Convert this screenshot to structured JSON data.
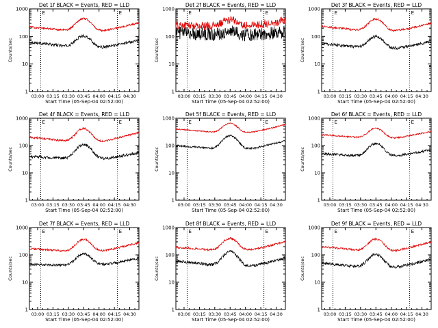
{
  "chart_data": [
    {
      "type": "line",
      "title": "Det 1f BLACK = Events, RED = LLD",
      "xlabel": "Start Time (05-Sep-04 02:52:00)",
      "ylabel": "Counts/sec",
      "yscale": "log",
      "ylim": [
        1,
        1000
      ],
      "x_ticks": [
        "03:00",
        "03:15",
        "03:30",
        "03:45",
        "04:00",
        "04:15",
        "04:30"
      ],
      "y_ticks": [
        "1",
        "10",
        "100",
        "1000"
      ],
      "markers": [
        "E",
        "E"
      ],
      "series": [
        {
          "name": "Events",
          "color": "#000000",
          "base_start": 62,
          "base_min": 35,
          "base_end": 75,
          "peak": 105,
          "noise": 0.12
        },
        {
          "name": "LLD",
          "color": "#e00000",
          "base_start": 220,
          "base_min": 140,
          "base_end": 310,
          "peak": 450,
          "noise": 0.08
        }
      ]
    },
    {
      "type": "line",
      "title": "Det 2f BLACK = Events, RED = LLD",
      "xlabel": "Start Time (05-Sep-04 02:52:00)",
      "ylabel": "Counts/sec",
      "yscale": "log",
      "ylim": [
        1,
        1000
      ],
      "x_ticks": [
        "03:00",
        "03:15",
        "03:30",
        "03:45",
        "04:00",
        "04:15",
        "04:30"
      ],
      "y_ticks": [
        "1",
        "10",
        "100",
        "1000"
      ],
      "markers": [
        "E",
        "E"
      ],
      "series": [
        {
          "name": "Events",
          "color": "#000000",
          "base_start": 140,
          "base_min": 110,
          "base_end": 150,
          "peak": 150,
          "noise": 0.55
        },
        {
          "name": "LLD",
          "color": "#e00000",
          "base_start": 260,
          "base_min": 230,
          "base_end": 380,
          "peak": 400,
          "noise": 0.35
        }
      ]
    },
    {
      "type": "line",
      "title": "Det 3f BLACK = Events, RED = LLD",
      "xlabel": "Start Time (05-Sep-04 02:52:00)",
      "ylabel": "Counts/sec",
      "yscale": "log",
      "ylim": [
        1,
        1000
      ],
      "x_ticks": [
        "03:00",
        "03:15",
        "03:30",
        "03:45",
        "04:00",
        "04:15",
        "04:30"
      ],
      "y_ticks": [
        "1",
        "10",
        "100",
        "1000"
      ],
      "markers": [
        "E",
        "E"
      ],
      "series": [
        {
          "name": "Events",
          "color": "#000000",
          "base_start": 55,
          "base_min": 33,
          "base_end": 65,
          "peak": 100,
          "noise": 0.12
        },
        {
          "name": "LLD",
          "color": "#e00000",
          "base_start": 230,
          "base_min": 140,
          "base_end": 300,
          "peak": 430,
          "noise": 0.08
        }
      ]
    },
    {
      "type": "line",
      "title": "Det 4f BLACK = Events, RED = LLD",
      "xlabel": "Start Time (05-Sep-04 02:52:00)",
      "ylabel": "Counts/sec",
      "yscale": "log",
      "ylim": [
        1,
        1000
      ],
      "x_ticks": [
        "03:00",
        "03:15",
        "03:30",
        "03:45",
        "04:00",
        "04:15",
        "04:30"
      ],
      "y_ticks": [
        "1",
        "10",
        "100",
        "1000"
      ],
      "markers": [
        "E",
        "E"
      ],
      "series": [
        {
          "name": "Events",
          "color": "#000000",
          "base_start": 40,
          "base_min": 30,
          "base_end": 55,
          "peak": 110,
          "noise": 0.12
        },
        {
          "name": "LLD",
          "color": "#e00000",
          "base_start": 200,
          "base_min": 120,
          "base_end": 300,
          "peak": 420,
          "noise": 0.08
        }
      ]
    },
    {
      "type": "line",
      "title": "Det 5f BLACK = Events, RED = LLD",
      "xlabel": "Start Time (05-Sep-04 02:52:00)",
      "ylabel": "Counts/sec",
      "yscale": "log",
      "ylim": [
        1,
        1000
      ],
      "x_ticks": [
        "03:00",
        "03:15",
        "03:30",
        "03:45",
        "04:00",
        "04:15",
        "04:30"
      ],
      "y_ticks": [
        "1",
        "10",
        "100",
        "1000"
      ],
      "markers": [
        "E",
        "E"
      ],
      "series": [
        {
          "name": "Events",
          "color": "#000000",
          "base_start": 100,
          "base_min": 65,
          "base_end": 150,
          "peak": 230,
          "noise": 0.08
        },
        {
          "name": "LLD",
          "color": "#e00000",
          "base_start": 400,
          "base_min": 260,
          "base_end": 580,
          "peak": 650,
          "noise": 0.05
        }
      ]
    },
    {
      "type": "line",
      "title": "Det 6f BLACK = Events, RED = LLD",
      "xlabel": "Start Time (05-Sep-04 02:52:00)",
      "ylabel": "Counts/sec",
      "yscale": "log",
      "ylim": [
        1,
        1000
      ],
      "x_ticks": [
        "03:00",
        "03:15",
        "03:30",
        "03:45",
        "04:00",
        "04:15",
        "04:30"
      ],
      "y_ticks": [
        "1",
        "10",
        "100",
        "1000"
      ],
      "markers": [
        "E",
        "E"
      ],
      "series": [
        {
          "name": "Events",
          "color": "#000000",
          "base_start": 50,
          "base_min": 38,
          "base_end": 70,
          "peak": 120,
          "noise": 0.1
        },
        {
          "name": "LLD",
          "color": "#e00000",
          "base_start": 250,
          "base_min": 170,
          "base_end": 330,
          "peak": 430,
          "noise": 0.06
        }
      ]
    },
    {
      "type": "line",
      "title": "Det 7f BLACK = Events, RED = LLD",
      "xlabel": "Start Time (05-Sep-04 02:52:00)",
      "ylabel": "Counts/sec",
      "yscale": "log",
      "ylim": [
        1,
        1000
      ],
      "x_ticks": [
        "03:00",
        "03:15",
        "03:30",
        "03:45",
        "04:00",
        "04:15",
        "04:30"
      ],
      "y_ticks": [
        "1",
        "10",
        "100",
        "1000"
      ],
      "markers": [
        "E",
        "E"
      ],
      "series": [
        {
          "name": "Events",
          "color": "#000000",
          "base_start": 45,
          "base_min": 40,
          "base_end": 75,
          "peak": 110,
          "noise": 0.1
        },
        {
          "name": "LLD",
          "color": "#e00000",
          "base_start": 170,
          "base_min": 120,
          "base_end": 280,
          "peak": 370,
          "noise": 0.08
        }
      ]
    },
    {
      "type": "line",
      "title": "Det 8f BLACK = Events, RED = LLD",
      "xlabel": "Start Time (05-Sep-04 02:52:00)",
      "ylabel": "Counts/sec",
      "yscale": "log",
      "ylim": [
        1,
        1000
      ],
      "x_ticks": [
        "03:00",
        "03:15",
        "03:30",
        "03:45",
        "04:00",
        "04:15",
        "04:30"
      ],
      "y_ticks": [
        "1",
        "10",
        "100",
        "1000"
      ],
      "markers": [
        "E",
        "E"
      ],
      "series": [
        {
          "name": "Events",
          "color": "#000000",
          "base_start": 60,
          "base_min": 33,
          "base_end": 75,
          "peak": 130,
          "noise": 0.12
        },
        {
          "name": "LLD",
          "color": "#e00000",
          "base_start": 190,
          "base_min": 130,
          "base_end": 300,
          "peak": 400,
          "noise": 0.08
        }
      ]
    },
    {
      "type": "line",
      "title": "Det 9f BLACK = Events, RED = LLD",
      "xlabel": "Start Time (05-Sep-04 02:52:00)",
      "ylabel": "Counts/sec",
      "yscale": "log",
      "ylim": [
        1,
        1000
      ],
      "x_ticks": [
        "03:00",
        "03:15",
        "03:30",
        "03:45",
        "04:00",
        "04:15",
        "04:30"
      ],
      "y_ticks": [
        "1",
        "10",
        "100",
        "1000"
      ],
      "markers": [
        "E",
        "E"
      ],
      "series": [
        {
          "name": "Events",
          "color": "#000000",
          "base_start": 50,
          "base_min": 30,
          "base_end": 70,
          "peak": 105,
          "noise": 0.12
        },
        {
          "name": "LLD",
          "color": "#e00000",
          "base_start": 200,
          "base_min": 120,
          "base_end": 300,
          "peak": 380,
          "noise": 0.08
        }
      ]
    }
  ]
}
